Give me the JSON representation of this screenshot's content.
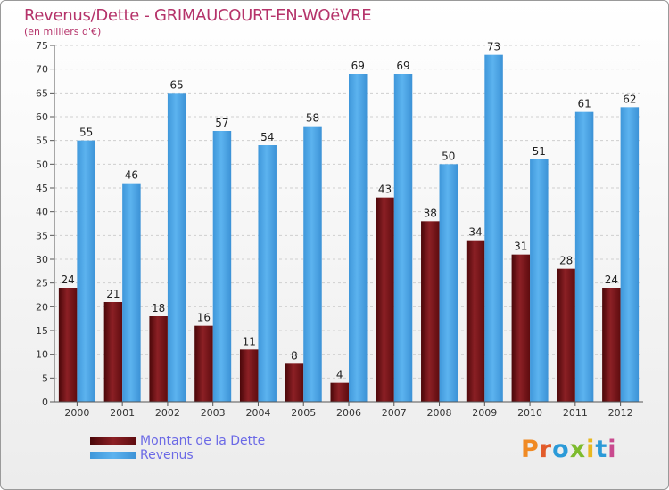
{
  "colors": {
    "title": "#b5336a",
    "dette": "#6e0f12",
    "revenus": "#4aa3e3",
    "legend_text": "#6b69e6"
  },
  "brand": {
    "logo_text": "Proxiti"
  },
  "chart_data": {
    "type": "bar",
    "title": "Revenus/Dette - GRIMAUCOURT-EN-WOëVRE",
    "subtitle": "(en milliers d'€)",
    "xlabel": "",
    "ylabel": "",
    "ylim": [
      0,
      75
    ],
    "yticks": [
      0,
      5,
      10,
      15,
      20,
      25,
      30,
      35,
      40,
      45,
      50,
      55,
      60,
      65,
      70,
      75
    ],
    "grid": true,
    "legend_position": "bottom-left",
    "categories": [
      "2000",
      "2001",
      "2002",
      "2003",
      "2004",
      "2005",
      "2006",
      "2007",
      "2008",
      "2009",
      "2010",
      "2011",
      "2012"
    ],
    "series": [
      {
        "name": "Montant de la Dette",
        "values": [
          24,
          21,
          18,
          16,
          11,
          8,
          4,
          43,
          38,
          34,
          31,
          28,
          24
        ]
      },
      {
        "name": "Revenus",
        "values": [
          55,
          46,
          65,
          57,
          54,
          58,
          69,
          69,
          50,
          73,
          51,
          61,
          62
        ]
      }
    ]
  }
}
